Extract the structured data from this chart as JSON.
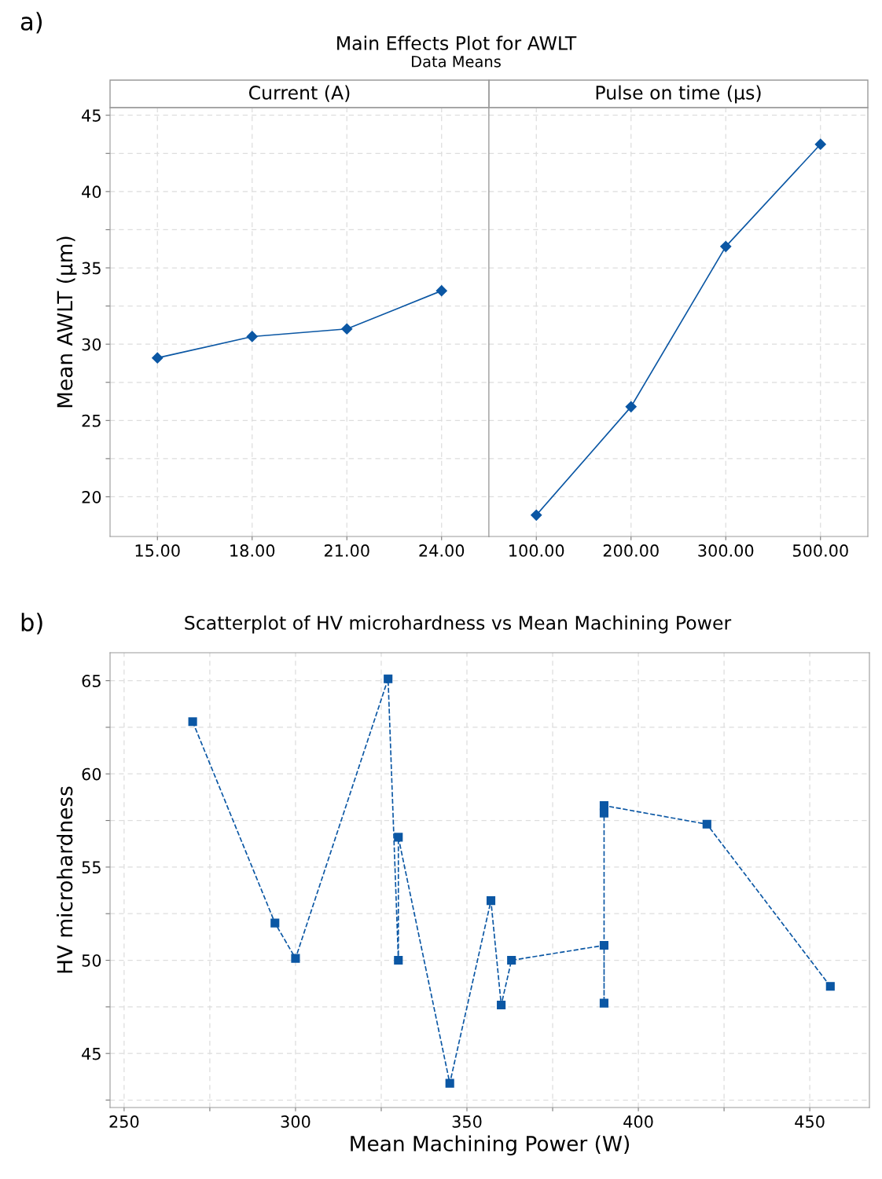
{
  "chart_data": [
    {
      "type": "line",
      "title": "Main Effects Plot for AWLT",
      "subtitle": "Data Means",
      "xlabel": "Current (A)",
      "ylabel": "Mean AWLT (µm)",
      "annotations": [
        "a)"
      ],
      "categories": [
        "15.00",
        "18.00",
        "21.00",
        "24.00"
      ],
      "series": [
        {
          "color": "#0b57a4",
          "values": [
            29.1,
            30.5,
            31.0,
            33.5
          ]
        }
      ],
      "ylim": [
        17.4,
        45.5
      ],
      "yticks": [
        20,
        {
          "value": 22.5,
          "label": null
        },
        25,
        {
          "value": 27.5,
          "label": null
        },
        30,
        {
          "value": 32.5,
          "label": null
        },
        35,
        {
          "value": 37.5,
          "label": null
        },
        40,
        {
          "value": 42.5,
          "label": null
        },
        45
      ],
      "grid": true,
      "marker": "diamond",
      "line_style": "solid"
    },
    {
      "type": "line",
      "xlabel": "Pulse on time (µs)",
      "categories": [
        "100.00",
        "200.00",
        "300.00",
        "500.00"
      ],
      "series": [
        {
          "color": "#0b57a4",
          "values": [
            18.8,
            25.9,
            36.4,
            43.1
          ]
        }
      ],
      "ylim": [
        17.4,
        45.5
      ],
      "yticks": [
        20,
        {
          "value": 22.5,
          "label": null
        },
        25,
        {
          "value": 27.5,
          "label": null
        },
        30,
        {
          "value": 32.5,
          "label": null
        },
        35,
        {
          "value": 37.5,
          "label": null
        },
        40,
        {
          "value": 42.5,
          "label": null
        },
        45
      ],
      "tick_labels": "x",
      "grid": true,
      "marker": "diamond",
      "line_style": "solid"
    },
    {
      "type": "line",
      "title": "Scatterplot of HV microhardness vs Mean Machining Power",
      "xlabel": "Mean Machining Power (W)",
      "ylabel": "HV microhardness",
      "annotations": [
        "b)"
      ],
      "x": [
        270,
        294,
        300,
        327,
        330,
        330,
        345,
        357,
        360,
        363,
        390,
        390,
        390,
        390,
        420,
        456
      ],
      "series": [
        {
          "color": "#0b57a4",
          "values": [
            62.8,
            52.0,
            50.1,
            65.1,
            50.0,
            56.6,
            43.4,
            53.2,
            47.6,
            50.0,
            50.8,
            47.7,
            57.9,
            58.3,
            57.3,
            48.6
          ]
        }
      ],
      "xlim": [
        245.9,
        467.4
      ],
      "xticks": [
        250,
        {
          "value": 275,
          "label": null
        },
        300,
        {
          "value": 325,
          "label": null
        },
        350,
        {
          "value": 375,
          "label": null
        },
        400,
        {
          "value": 425,
          "label": null
        },
        450
      ],
      "ylim": [
        42.1,
        66.5
      ],
      "yticks": [
        {
          "value": 42.5,
          "label": null
        },
        45,
        {
          "value": 47.5,
          "label": null
        },
        50,
        {
          "value": 52.5,
          "label": null
        },
        55,
        {
          "value": 57.5,
          "label": null
        },
        60,
        {
          "value": 62.5,
          "label": null
        },
        65
      ],
      "grid": true,
      "marker": "square",
      "line_style": "dashed"
    }
  ]
}
